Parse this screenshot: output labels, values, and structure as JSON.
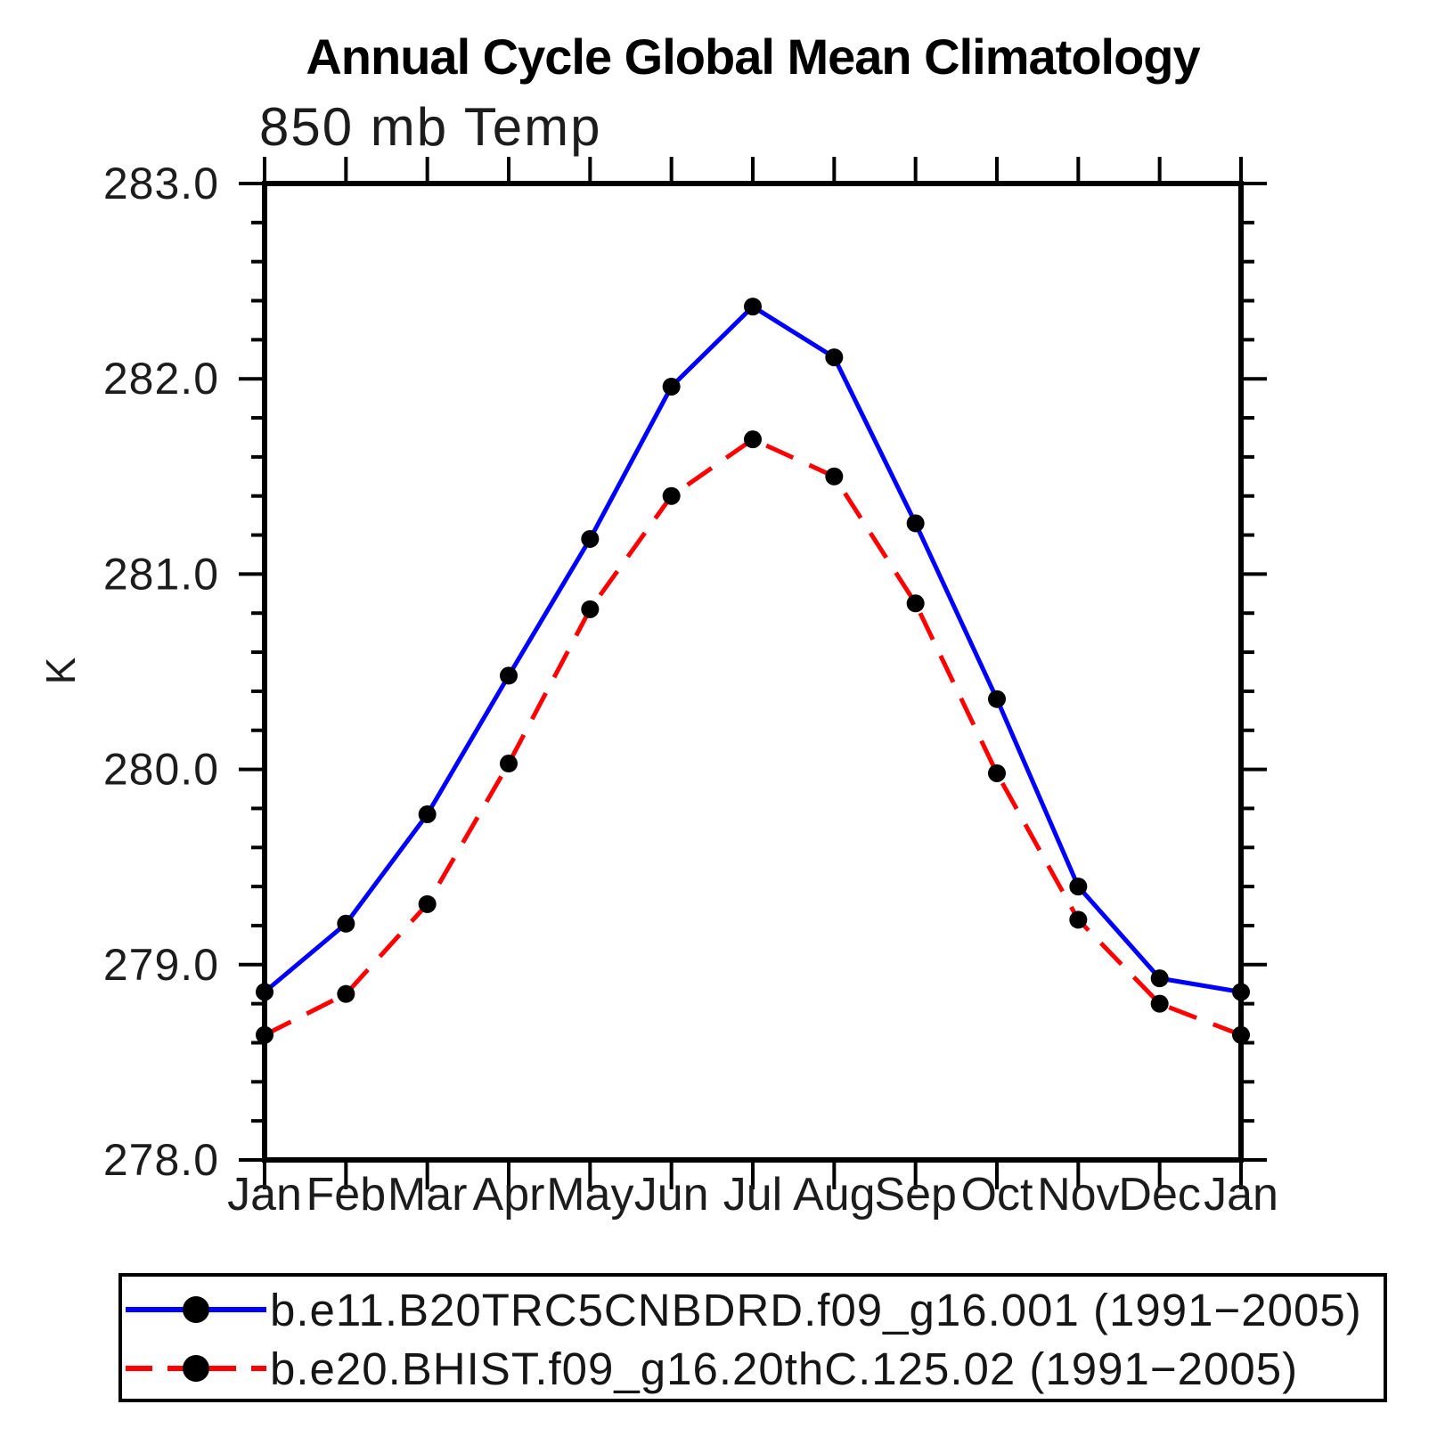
{
  "chart_data": {
    "type": "line",
    "title": "Annual Cycle Global Mean Climatology",
    "subtitle_left": "850 mb Temp",
    "ylabel": "K",
    "xlabel": "",
    "categories": [
      "Jan",
      "Feb",
      "Mar",
      "Apr",
      "May",
      "Jun",
      "Jul",
      "Aug",
      "Sep",
      "Oct",
      "Nov",
      "Dec",
      "Jan"
    ],
    "ylim": [
      278.0,
      283.0
    ],
    "ytick_major_step": 1.0,
    "ytick_minor_step": 0.2,
    "ytick_label_decimals": 1,
    "grid": false,
    "legend_position": "bottom",
    "axis_color": "#000000",
    "marker_color": "#000000",
    "series": [
      {
        "name": "b.e11.B20TRC5CNBDRD.f09_g16.001 (1991−2005)",
        "color": "#0000ff",
        "line_style": "solid",
        "values": [
          278.86,
          279.21,
          279.77,
          280.48,
          281.18,
          281.96,
          282.37,
          282.11,
          281.26,
          280.36,
          279.4,
          278.93,
          278.86
        ]
      },
      {
        "name": "b.e20.BHIST.f09_g16.20thC.125.02 (1991−2005)",
        "color": "#ff0000",
        "line_style": "dashed",
        "values": [
          278.64,
          278.85,
          279.31,
          280.03,
          280.82,
          281.4,
          281.69,
          281.5,
          280.85,
          279.98,
          279.23,
          278.8,
          278.64
        ]
      }
    ]
  }
}
